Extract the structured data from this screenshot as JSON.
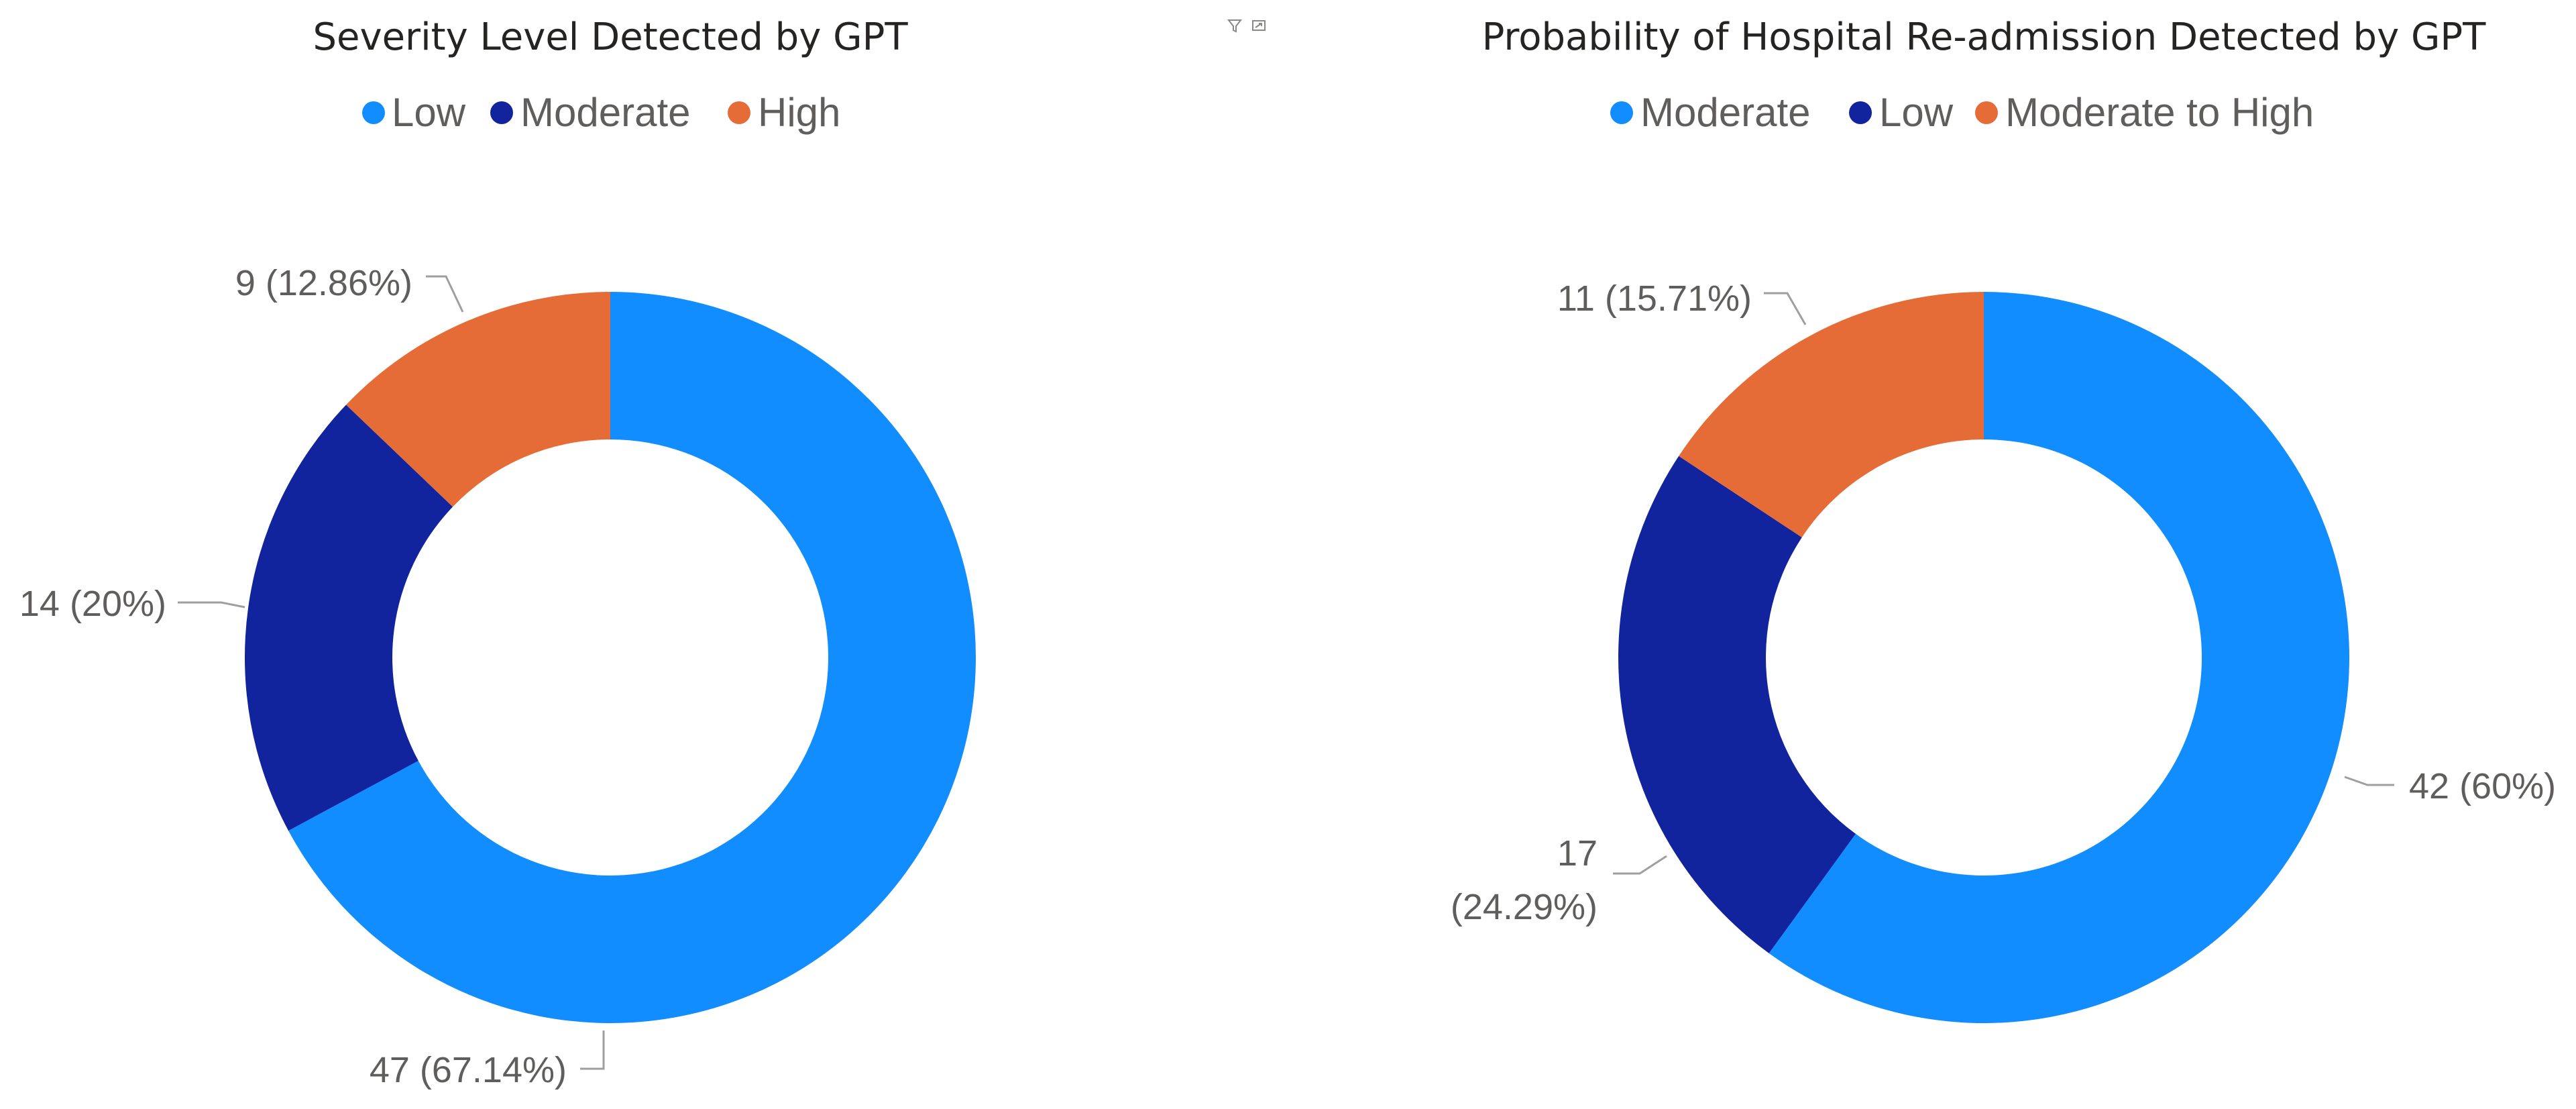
{
  "colors": {
    "light_blue": "#118dff",
    "dark_blue": "#12239e",
    "orange": "#e66c37"
  },
  "header_icons": [
    "filter-icon",
    "focus-mode-icon"
  ],
  "chart_data": [
    {
      "type": "pie",
      "variant": "donut",
      "title": "Severity Level Detected by GPT",
      "legend_position": "top-center",
      "slices": [
        {
          "name": "Low",
          "value": 47,
          "percent": "67.14%",
          "label": "47 (67.14%)",
          "color": "#118dff"
        },
        {
          "name": "Moderate",
          "value": 14,
          "percent": "20%",
          "label": "14 (20%)",
          "color": "#12239e"
        },
        {
          "name": "High",
          "value": 9,
          "percent": "12.86%",
          "label": "9 (12.86%)",
          "color": "#e66c37"
        }
      ]
    },
    {
      "type": "pie",
      "variant": "donut",
      "title": "Probability of Hospital Re-admission Detected by GPT",
      "legend_position": "top-center",
      "slices": [
        {
          "name": "Moderate",
          "value": 42,
          "percent": "60%",
          "label": "42 (60%)",
          "color": "#118dff"
        },
        {
          "name": "Low",
          "value": 17,
          "percent": "24.29%",
          "label": "17 (24.29%)",
          "label_lines": [
            "17",
            "(24.29%)"
          ],
          "color": "#12239e"
        },
        {
          "name": "Moderate to High",
          "value": 11,
          "percent": "15.71%",
          "label": "11 (15.71%)",
          "color": "#e66c37"
        }
      ]
    }
  ]
}
